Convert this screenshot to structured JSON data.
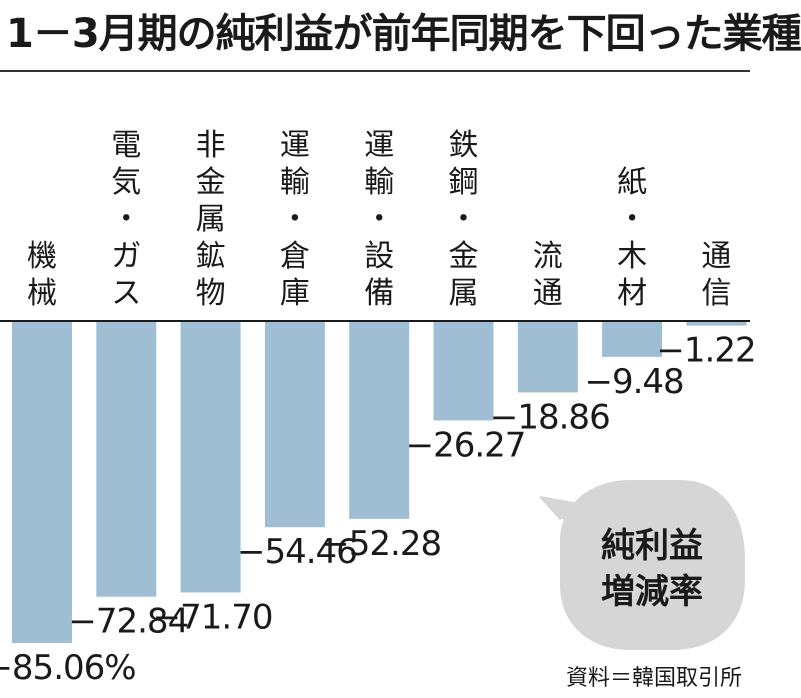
{
  "title": "1－3月期の純利益が前年同期を下回った業種",
  "source": "資料＝韓国取引所",
  "callout": {
    "line1": "純利益",
    "line2": "増減率"
  },
  "chart_data": {
    "type": "bar",
    "title": "1－3月期の純利益が前年同期を下回った業種",
    "categories": [
      "機械",
      "電気・ガス",
      "非金属鉱物",
      "運輸・倉庫",
      "運輸・設備",
      "鉄鋼・金属",
      "流通",
      "紙・木材",
      "通信"
    ],
    "values": [
      -85.06,
      -72.84,
      -71.7,
      -54.46,
      -52.28,
      -26.27,
      -18.86,
      -9.48,
      -1.22
    ],
    "value_labels": [
      "−85.06%",
      "−72.84",
      "−71.70",
      "−54.46",
      "−52.28",
      "−26.27",
      "−18.86",
      "−9.48",
      "−1.22"
    ],
    "ylabel": "純利益増減率",
    "unit": "%",
    "ylim": [
      -85.06,
      0
    ],
    "grid": false,
    "legend": "none",
    "bar_color": "#9fbdd3",
    "axis_color": "#1a1a1a"
  }
}
